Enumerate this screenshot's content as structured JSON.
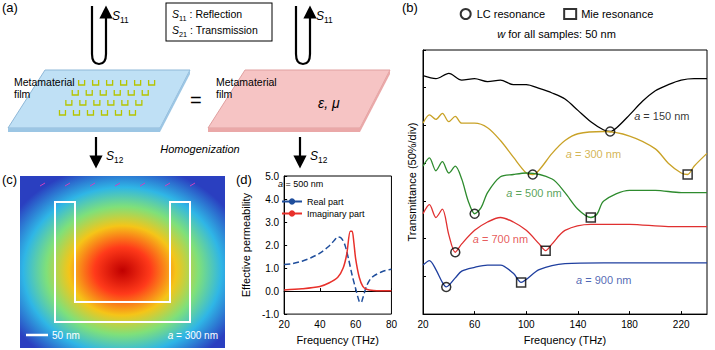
{
  "panels": {
    "a": {
      "label": "(a)",
      "box": [
        "S11 : Reflection",
        "S21 : Transmission"
      ],
      "left_film": "Metamaterial film",
      "right_film": "Metamaterial film",
      "material": "ε, μ",
      "equals": "=",
      "caption": "Homogenization",
      "reflection": "S11",
      "transmission": "S12"
    },
    "c": {
      "label": "(c)",
      "scale_bar": "50 nm",
      "caption": "a = 300 nm"
    }
  },
  "chart_data": [
    {
      "label": "(b)",
      "type": "line",
      "xlabel": "Frequency (THz)",
      "ylabel": "Transmittance (50%/div)",
      "annotation": "w for all samples: 50 nm",
      "xlim": [
        20,
        240
      ],
      "xticks": [
        20,
        60,
        100,
        140,
        180,
        220
      ],
      "ylim": [
        0,
        350
      ],
      "yticks": [
        0,
        50,
        100,
        150,
        200,
        250,
        300,
        350
      ],
      "tick_labels": "x",
      "legend": "top",
      "series": [
        {
          "name": "a = 150 nm",
          "type": "line",
          "color": "#000000",
          "label_x": 205,
          "label_y": 262,
          "x": [
            20,
            30,
            40,
            50,
            60,
            70,
            80,
            90,
            100,
            110,
            120,
            130,
            140,
            150,
            160,
            165,
            170,
            180,
            190,
            200,
            210,
            220,
            230,
            240
          ],
          "values": [
            316,
            312,
            319,
            310,
            312,
            308,
            310,
            304,
            304,
            299,
            293,
            285,
            270,
            255,
            244,
            242,
            247,
            264,
            282,
            296,
            304,
            310,
            312,
            312
          ]
        },
        {
          "name": "a = 300 nm",
          "type": "line",
          "color": "#c9a227",
          "label_x": 152,
          "label_y": 212,
          "x": [
            20,
            25,
            30,
            35,
            40,
            45,
            50,
            60,
            70,
            80,
            90,
            100,
            105,
            110,
            120,
            130,
            140,
            160,
            180,
            200,
            210,
            220,
            225,
            230,
            240
          ],
          "values": [
            253,
            264,
            258,
            266,
            255,
            262,
            253,
            253,
            247,
            230,
            208,
            187,
            185,
            191,
            213,
            230,
            239,
            242,
            236,
            219,
            200,
            187,
            185,
            196,
            213
          ]
        },
        {
          "name": "a = 500 nm",
          "type": "line",
          "color": "#2e8b2e",
          "label_x": 106,
          "label_y": 160,
          "x": [
            20,
            25,
            30,
            35,
            40,
            45,
            50,
            55,
            60,
            65,
            70,
            80,
            90,
            100,
            120,
            130,
            140,
            150,
            155,
            160,
            180,
            200,
            220,
            240
          ],
          "values": [
            196,
            207,
            190,
            202,
            187,
            196,
            179,
            150,
            133,
            141,
            161,
            182,
            185,
            187,
            179,
            161,
            139,
            128,
            133,
            150,
            164,
            164,
            161,
            161
          ]
        },
        {
          "name": "a = 700 nm",
          "type": "line",
          "color": "#e03030",
          "label_x": 80,
          "label_y": 100,
          "x": [
            20,
            25,
            30,
            35,
            40,
            45,
            50,
            60,
            70,
            80,
            90,
            100,
            110,
            115,
            120,
            130,
            150,
            180,
            210,
            240
          ],
          "values": [
            133,
            145,
            128,
            139,
            105,
            82,
            93,
            111,
            122,
            128,
            122,
            111,
            93,
            84,
            93,
            111,
            119,
            119,
            116,
            116
          ]
        },
        {
          "name": "a = 900 nm",
          "type": "line",
          "color": "#1f3f9f",
          "label_x": 160,
          "label_y": 45,
          "x": [
            20,
            25,
            30,
            35,
            38,
            45,
            50,
            60,
            70,
            80,
            90,
            96,
            100,
            110,
            130,
            160,
            200,
            240
          ],
          "values": [
            65,
            71,
            59,
            42,
            36,
            48,
            57,
            62,
            65,
            65,
            54,
            42,
            46,
            59,
            67,
            68,
            68,
            68
          ]
        },
        {
          "name": "LC resonance",
          "type": "scatter",
          "marker": "circle",
          "color": "#000000",
          "x": [
            165,
            105,
            60,
            45,
            38
          ],
          "values": [
            242,
            185,
            133,
            82,
            36
          ]
        },
        {
          "name": "Mie resonance",
          "type": "scatter",
          "marker": "square",
          "color": "#000000",
          "x": [
            225,
            150,
            115,
            96
          ],
          "values": [
            185,
            128,
            84,
            42
          ]
        }
      ]
    },
    {
      "label": "(d)",
      "type": "line",
      "xlabel": "Frequency (THz)",
      "ylabel": "Effective permeability",
      "annotation": "a = 500 nm",
      "xlim": [
        20,
        80
      ],
      "xticks": [
        20,
        40,
        60,
        80
      ],
      "ylim": [
        -1,
        5
      ],
      "yticks": [
        {
          "value": -1,
          "label": "-1.0"
        },
        {
          "value": 0,
          "label": "0.0"
        },
        {
          "value": 1,
          "label": "1.0"
        },
        {
          "value": 2,
          "label": "2.0"
        },
        {
          "value": 3,
          "label": "3.0"
        },
        {
          "value": 4,
          "label": "4.0"
        },
        {
          "value": 5,
          "label": "5.0"
        }
      ],
      "legend": "upper left",
      "series": [
        {
          "name": "Real part",
          "color": "#1f4e9c",
          "line_style": "dashed",
          "x": [
            20,
            25,
            30,
            35,
            40,
            45,
            48,
            50,
            52,
            54,
            56,
            58,
            60,
            62,
            63,
            64,
            66,
            68,
            70,
            75,
            80
          ],
          "values": [
            1.15,
            1.2,
            1.3,
            1.45,
            1.65,
            1.95,
            2.2,
            2.35,
            2.3,
            2.0,
            1.4,
            0.7,
            0.1,
            -0.45,
            -0.5,
            -0.3,
            0.2,
            0.5,
            0.65,
            0.85,
            0.95
          ]
        },
        {
          "name": "Imaginary part",
          "color": "#e8302a",
          "line_style": "solid",
          "x": [
            20,
            30,
            40,
            45,
            50,
            53,
            55,
            57,
            58,
            59,
            60,
            62,
            64,
            66,
            70,
            80
          ],
          "values": [
            0.05,
            0.1,
            0.2,
            0.35,
            0.6,
            1.0,
            1.6,
            2.6,
            2.6,
            2.1,
            1.4,
            0.6,
            0.2,
            0.08,
            0.03,
            0.01
          ]
        }
      ]
    }
  ]
}
